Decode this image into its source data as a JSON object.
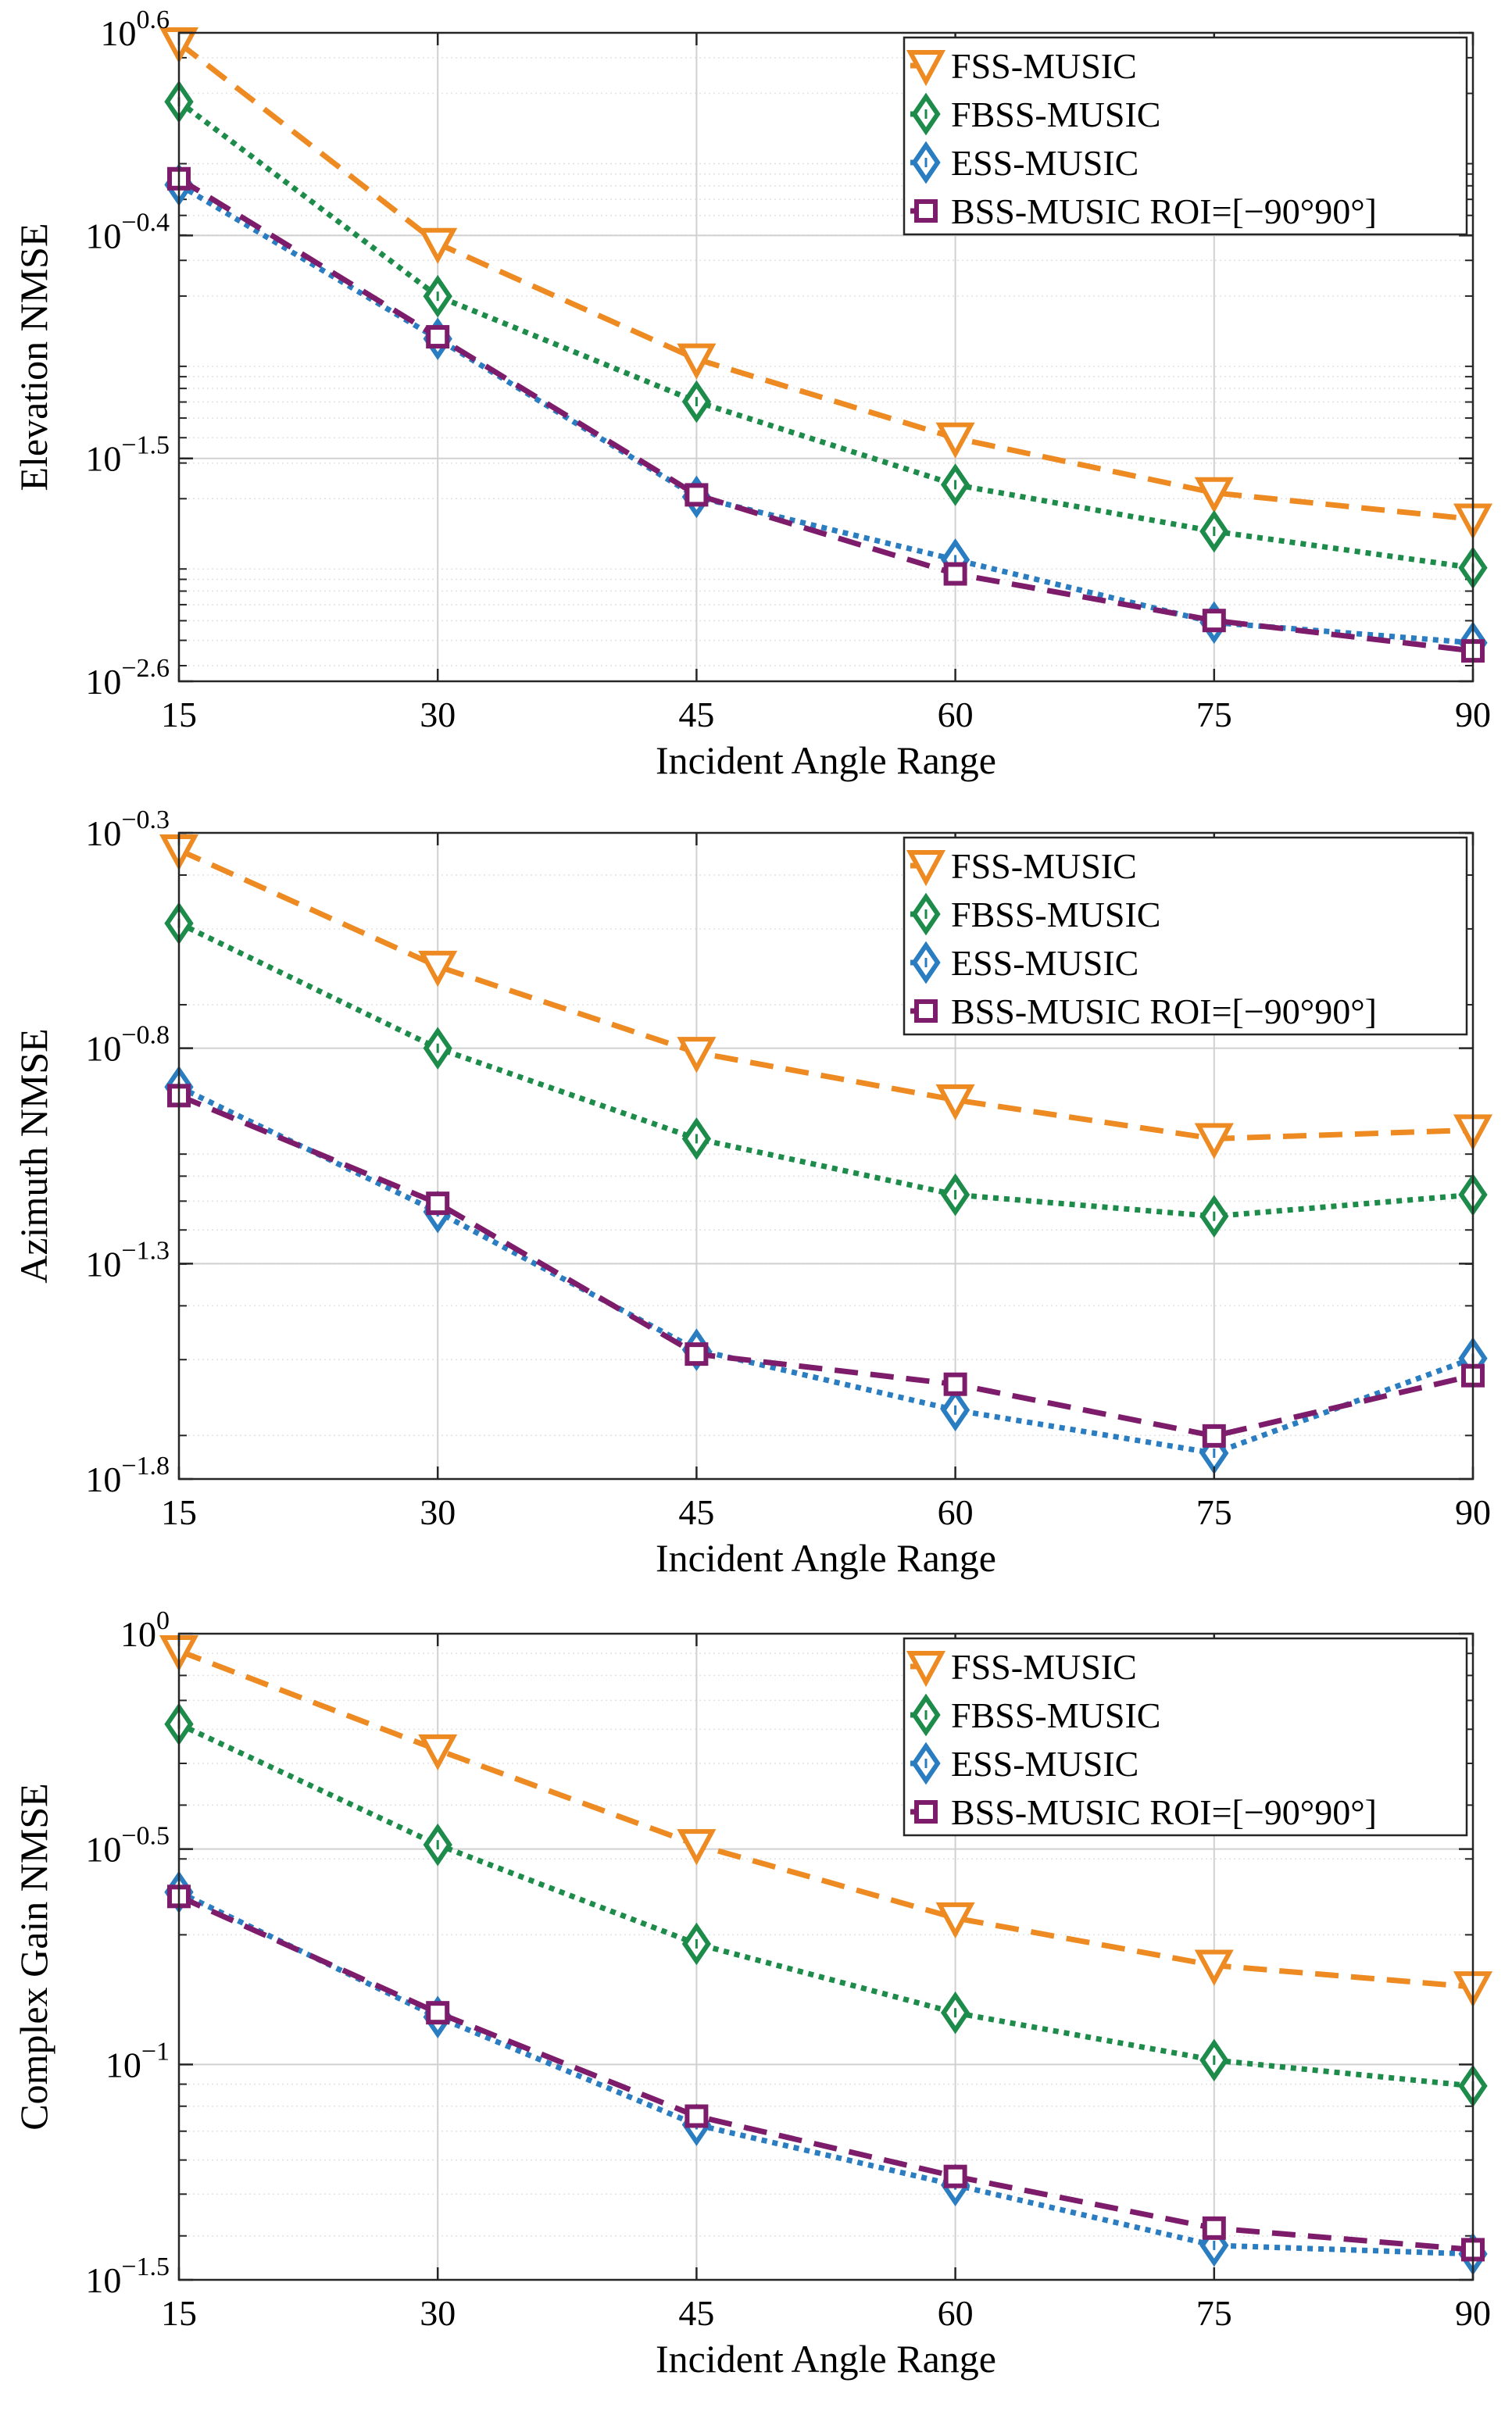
{
  "figure": {
    "background": "#ffffff"
  },
  "chart_data": [
    {
      "type": "line",
      "title": "",
      "xlabel": "Incident Angle Range",
      "ylabel": "Elevation NMSE",
      "yscale": "log",
      "x": [
        15,
        30,
        45,
        60,
        75,
        90
      ],
      "xlim": [
        15,
        90
      ],
      "xticks": [
        "15",
        "30",
        "45",
        "60",
        "75",
        "90"
      ],
      "ylim_exponent": [
        -2.6,
        0.6
      ],
      "ytick_exponents": [
        0.6,
        -0.4,
        -1.5,
        -2.6
      ],
      "ytick_labels": [
        {
          "base": "10",
          "exp": "0.6"
        },
        {
          "base": "10",
          "exp": "−0.4"
        },
        {
          "base": "10",
          "exp": "−1.5"
        },
        {
          "base": "10",
          "exp": "−2.6"
        }
      ],
      "grid": true,
      "legend_position": "top-right",
      "series": [
        {
          "name": "FSS-MUSIC",
          "color": "#EE8A22",
          "dash": "dashed",
          "marker": "triangle-down",
          "log10_values": [
            0.55,
            -0.44,
            -1.01,
            -1.4,
            -1.67,
            -1.8
          ]
        },
        {
          "name": "FBSS-MUSIC",
          "color": "#1D8B4A",
          "dash": "dotted",
          "marker": "diamond",
          "log10_values": [
            0.26,
            -0.7,
            -1.22,
            -1.63,
            -1.86,
            -2.04
          ]
        },
        {
          "name": "ESS-MUSIC",
          "color": "#2A7DC0",
          "dash": "dotted",
          "marker": "diamond",
          "log10_values": [
            -0.15,
            -0.91,
            -1.69,
            -2.0,
            -2.31,
            -2.41
          ]
        },
        {
          "name": "BSS-MUSIC ROI=[−90°90°]",
          "color": "#7E1C6C",
          "dash": "dashed",
          "marker": "square",
          "log10_values": [
            -0.12,
            -0.9,
            -1.68,
            -2.07,
            -2.3,
            -2.45
          ]
        }
      ]
    },
    {
      "type": "line",
      "title": "",
      "xlabel": "Incident Angle Range",
      "ylabel": "Azimuth NMSE",
      "yscale": "log",
      "x": [
        15,
        30,
        45,
        60,
        75,
        90
      ],
      "xlim": [
        15,
        90
      ],
      "xticks": [
        "15",
        "30",
        "45",
        "60",
        "75",
        "90"
      ],
      "ylim_exponent": [
        -1.8,
        -0.3
      ],
      "ytick_exponents": [
        -0.3,
        -0.8,
        -1.3,
        -1.8
      ],
      "ytick_labels": [
        {
          "base": "10",
          "exp": "−0.3"
        },
        {
          "base": "10",
          "exp": "−0.8"
        },
        {
          "base": "10",
          "exp": "−1.3"
        },
        {
          "base": "10",
          "exp": "−1.8"
        }
      ],
      "grid": true,
      "legend_position": "top-right",
      "series": [
        {
          "name": "FSS-MUSIC",
          "color": "#EE8A22",
          "dash": "dashed",
          "marker": "triangle-down",
          "log10_values": [
            -0.34,
            -0.61,
            -0.81,
            -0.92,
            -1.01,
            -0.99
          ]
        },
        {
          "name": "FBSS-MUSIC",
          "color": "#1D8B4A",
          "dash": "dotted",
          "marker": "diamond",
          "log10_values": [
            -0.51,
            -0.8,
            -1.01,
            -1.14,
            -1.19,
            -1.14
          ]
        },
        {
          "name": "ESS-MUSIC",
          "color": "#2A7DC0",
          "dash": "dotted",
          "marker": "diamond",
          "log10_values": [
            -0.89,
            -1.18,
            -1.5,
            -1.64,
            -1.74,
            -1.52
          ]
        },
        {
          "name": "BSS-MUSIC ROI=[−90°90°]",
          "color": "#7E1C6C",
          "dash": "dashed",
          "marker": "square",
          "log10_values": [
            -0.91,
            -1.16,
            -1.51,
            -1.58,
            -1.7,
            -1.56
          ]
        }
      ]
    },
    {
      "type": "line",
      "title": "",
      "xlabel": "Incident Angle Range",
      "ylabel": "Complex Gain NMSE",
      "yscale": "log",
      "x": [
        15,
        30,
        45,
        60,
        75,
        90
      ],
      "xlim": [
        15,
        90
      ],
      "xticks": [
        "15",
        "30",
        "45",
        "60",
        "75",
        "90"
      ],
      "ylim_exponent": [
        -1.5,
        0
      ],
      "ytick_exponents": [
        0,
        -0.5,
        -1,
        -1.5
      ],
      "ytick_labels": [
        {
          "base": "10",
          "exp": "0"
        },
        {
          "base": "10",
          "exp": "−0.5"
        },
        {
          "base": "10",
          "exp": "−1"
        },
        {
          "base": "10",
          "exp": "−1.5"
        }
      ],
      "grid": true,
      "legend_position": "top-right",
      "series": [
        {
          "name": "FSS-MUSIC",
          "color": "#EE8A22",
          "dash": "dashed",
          "marker": "triangle-down",
          "log10_values": [
            -0.04,
            -0.27,
            -0.49,
            -0.66,
            -0.77,
            -0.82
          ]
        },
        {
          "name": "FBSS-MUSIC",
          "color": "#1D8B4A",
          "dash": "dotted",
          "marker": "diamond",
          "log10_values": [
            -0.21,
            -0.49,
            -0.72,
            -0.88,
            -0.99,
            -1.05
          ]
        },
        {
          "name": "ESS-MUSIC",
          "color": "#2A7DC0",
          "dash": "dotted",
          "marker": "diamond",
          "log10_values": [
            -0.6,
            -0.89,
            -1.14,
            -1.28,
            -1.42,
            -1.44
          ]
        },
        {
          "name": "BSS-MUSIC ROI=[−90°90°]",
          "color": "#7E1C6C",
          "dash": "dashed",
          "marker": "square",
          "log10_values": [
            -0.61,
            -0.88,
            -1.12,
            -1.26,
            -1.38,
            -1.43
          ]
        }
      ]
    }
  ]
}
